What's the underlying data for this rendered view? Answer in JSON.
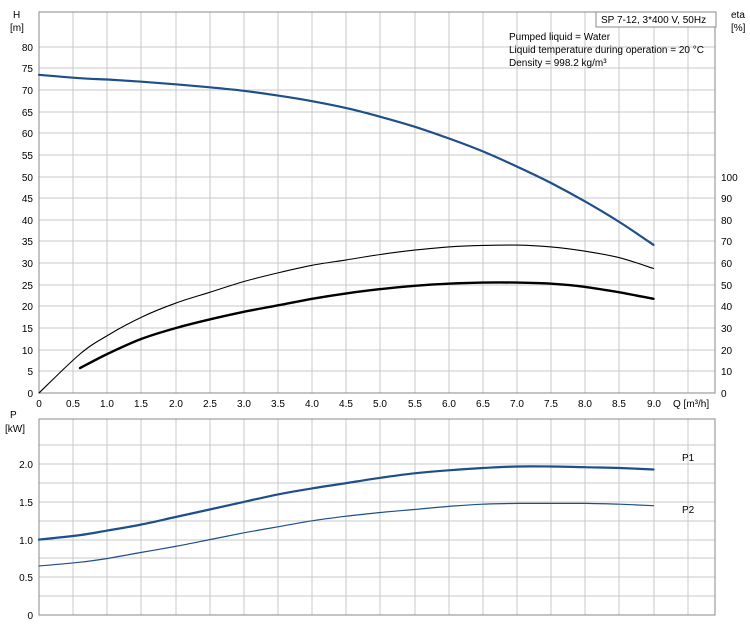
{
  "chart_data": [
    {
      "type": "line",
      "title": "SP 7-12, 3*400 V, 50Hz",
      "info_lines": [
        "Pumped liquid = Water",
        "Liquid temperature during operation = 20 °C",
        "Density = 998.2 kg/m³"
      ],
      "xlabel": "Q [m³/h]",
      "ylabel_line1": "H",
      "ylabel_line2": "[m]",
      "y2label_line1": "eta",
      "y2label_line2": "[%]",
      "xlim": [
        0,
        9.9
      ],
      "ylim": [
        0,
        88
      ],
      "y2lim": [
        0,
        176
      ],
      "x_ticks": [
        "0",
        "0.5",
        "1.0",
        "1.5",
        "2.0",
        "2.5",
        "3.0",
        "3.5",
        "4.0",
        "4.5",
        "5.0",
        "5.5",
        "6.0",
        "6.5",
        "7.0",
        "7.5",
        "8.0",
        "8.5",
        "9.0"
      ],
      "y_ticks": [
        "0",
        "5",
        "10",
        "15",
        "20",
        "25",
        "30",
        "35",
        "40",
        "45",
        "50",
        "55",
        "60",
        "65",
        "70",
        "75",
        "80"
      ],
      "y2_ticks": [
        "0",
        "10",
        "20",
        "30",
        "40",
        "50",
        "60",
        "70",
        "80",
        "90",
        "100"
      ],
      "grid": true,
      "series": [
        {
          "axis": "left",
          "color": "#1f4e8c",
          "x": [
            0,
            0.6,
            1.0,
            1.5,
            2.0,
            2.5,
            3.0,
            3.5,
            4.0,
            4.5,
            5.0,
            5.5,
            6.0,
            6.5,
            7.0,
            7.5,
            8.0,
            8.5,
            9.0
          ],
          "values": [
            73.5,
            72.7,
            72.4,
            71.9,
            71.3,
            70.6,
            69.8,
            68.7,
            67.4,
            65.8,
            63.8,
            61.5,
            58.8,
            55.8,
            52.3,
            48.5,
            44.2,
            39.5,
            34.2
          ]
        },
        {
          "axis": "right",
          "color": "#000000",
          "x": [
            0,
            0.6,
            1.0,
            1.5,
            2.0,
            2.5,
            3.0,
            3.5,
            4.0,
            4.5,
            5.0,
            5.5,
            6.0,
            6.5,
            7.0,
            7.5,
            8.0,
            8.5,
            9.0
          ],
          "values": [
            0,
            18,
            26.5,
            35,
            41.5,
            46.5,
            51.5,
            55.5,
            59,
            61.5,
            64,
            66,
            67.5,
            68.2,
            68.3,
            67.5,
            65.5,
            62.5,
            57.5
          ]
        },
        {
          "axis": "right",
          "color": "#000000",
          "x": [
            0.6,
            1.0,
            1.5,
            2.0,
            2.5,
            3.0,
            3.5,
            4.0,
            4.5,
            5.0,
            5.5,
            6.0,
            6.5,
            7.0,
            7.5,
            8.0,
            8.5,
            9.0
          ],
          "values": [
            11.5,
            18,
            25,
            30,
            34,
            37.5,
            40.5,
            43.5,
            46,
            48,
            49.5,
            50.5,
            51,
            51,
            50.5,
            49,
            46.5,
            43.5
          ]
        }
      ]
    },
    {
      "type": "line",
      "xlim": [
        0,
        9.9
      ],
      "ylim": [
        0,
        2.6
      ],
      "ylabel_line1": "P",
      "ylabel_line2": "[kW]",
      "y_ticks": [
        "0",
        "0.5",
        "1.0",
        "1.5",
        "2.0"
      ],
      "grid": true,
      "series": [
        {
          "name": "P1",
          "color": "#1f4e8c",
          "x": [
            0,
            0.6,
            1.0,
            1.5,
            2.0,
            2.5,
            3.0,
            3.5,
            4.0,
            4.5,
            5.0,
            5.5,
            6.0,
            6.5,
            7.0,
            7.5,
            8.0,
            8.5,
            9.0
          ],
          "values": [
            1.0,
            1.06,
            1.12,
            1.2,
            1.3,
            1.4,
            1.5,
            1.6,
            1.68,
            1.75,
            1.82,
            1.88,
            1.92,
            1.95,
            1.97,
            1.97,
            1.96,
            1.95,
            1.93
          ]
        },
        {
          "name": "P2",
          "color": "#1f4e8c",
          "x": [
            0,
            0.6,
            1.0,
            1.5,
            2.0,
            2.5,
            3.0,
            3.5,
            4.0,
            4.5,
            5.0,
            5.5,
            6.0,
            6.5,
            7.0,
            7.5,
            8.0,
            8.5,
            9.0
          ],
          "values": [
            0.65,
            0.7,
            0.75,
            0.83,
            0.91,
            1.0,
            1.09,
            1.17,
            1.25,
            1.31,
            1.36,
            1.4,
            1.44,
            1.47,
            1.48,
            1.48,
            1.48,
            1.47,
            1.45
          ]
        }
      ]
    }
  ]
}
